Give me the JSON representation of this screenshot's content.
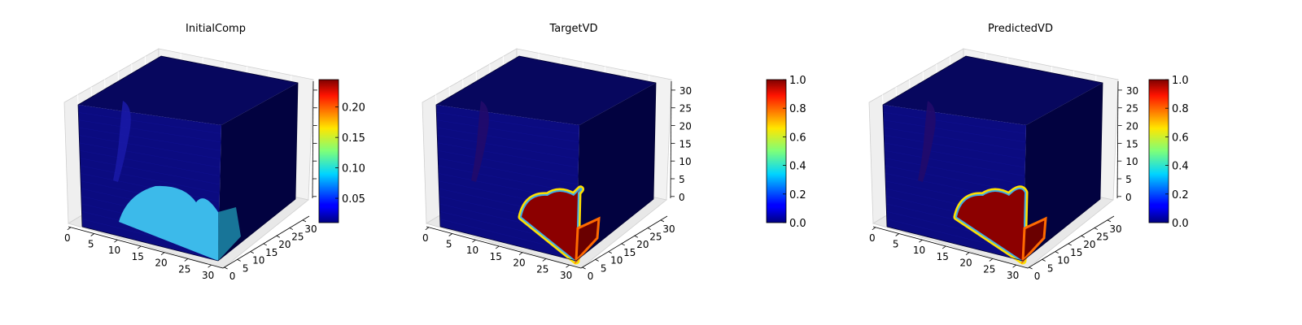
{
  "chart_data": [
    {
      "type": "voxel-3d",
      "title": "InitialComp",
      "x_ticks": [
        "0",
        "5",
        "10",
        "15",
        "20",
        "25",
        "30"
      ],
      "y_ticks": [
        "0",
        "5",
        "10",
        "15",
        "20",
        "25",
        "30"
      ],
      "z_ticks": [],
      "grid": true,
      "colormap": "jet",
      "colorbar": {
        "ticks": [
          "0.05",
          "0.10",
          "0.15",
          "0.20"
        ],
        "tick_values": [
          0.05,
          0.1,
          0.15,
          0.2
        ],
        "range": [
          0.01,
          0.245
        ]
      },
      "plume_value": 0.12
    },
    {
      "type": "voxel-3d",
      "title": "TargetVD",
      "x_ticks": [
        "0",
        "5",
        "10",
        "15",
        "20",
        "25",
        "30"
      ],
      "y_ticks": [
        "0",
        "5",
        "10",
        "15",
        "20",
        "25",
        "30"
      ],
      "z_ticks": [
        "0",
        "5",
        "10",
        "15",
        "20",
        "25",
        "30"
      ],
      "grid": true,
      "colormap": "jet",
      "colorbar": {
        "ticks": [
          "0.0",
          "0.2",
          "0.4",
          "0.6",
          "0.8",
          "1.0"
        ],
        "tick_values": [
          0.0,
          0.2,
          0.4,
          0.6,
          0.8,
          1.0
        ],
        "range": [
          0.0,
          1.0
        ]
      },
      "plume_value": 1.0
    },
    {
      "type": "voxel-3d",
      "title": "PredictedVD",
      "x_ticks": [
        "0",
        "5",
        "10",
        "15",
        "20",
        "25",
        "30"
      ],
      "y_ticks": [
        "0",
        "5",
        "10",
        "15",
        "20",
        "25",
        "30"
      ],
      "z_ticks": [
        "0",
        "5",
        "10",
        "15",
        "20",
        "25",
        "30"
      ],
      "grid": true,
      "colormap": "jet",
      "colorbar": {
        "ticks": [
          "0.0",
          "0.2",
          "0.4",
          "0.6",
          "0.8",
          "1.0"
        ],
        "tick_values": [
          0.0,
          0.2,
          0.4,
          0.6,
          0.8,
          1.0
        ],
        "range": [
          0.0,
          1.0
        ]
      },
      "plume_value": 1.0
    }
  ]
}
